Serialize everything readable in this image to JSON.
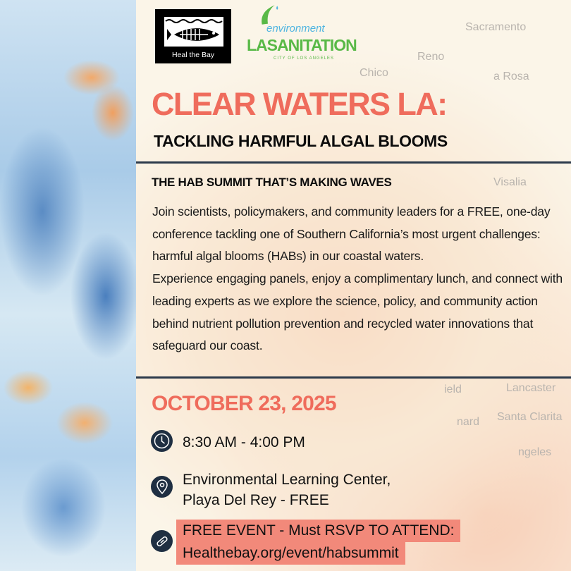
{
  "logos": {
    "heal_the_bay": "Heal the Bay",
    "lasan_environment": "environment",
    "lasan_name": "LASANITATION",
    "lasan_city": "CITY OF LOS ANGELES"
  },
  "map_labels": [
    "Reno",
    "Chico",
    "Sacramento",
    "a Rosa",
    "Visalia",
    "ield",
    "Lancaster",
    "Santa Clarita",
    "nard",
    "ngeles"
  ],
  "title": "CLEAR WATERS LA:",
  "subtitle": "TACKLING HARMFUL ALGAL BLOOMS",
  "section_heading": "THE HAB SUMMIT THAT’S MAKING WAVES",
  "body": {
    "p1": "Join scientists, policymakers, and community leaders for a FREE, one-day conference tackling one of Southern California’s most urgent challenges: harmful algal blooms (HABs) in our coastal waters.",
    "p2": "Experience engaging panels, enjoy a complimentary lunch, and connect with leading experts as we explore the science, policy, and community action behind nutrient pollution prevention and recycled water innovations that safeguard our coast."
  },
  "date": "OCTOBER 23, 2025",
  "time": "8:30 AM - 4:00 PM",
  "location": {
    "line1": "Environmental Learning Center,",
    "line2": "Playa Del Rey - FREE"
  },
  "rsvp": {
    "line1": "FREE EVENT - Must RSVP TO ATTEND:",
    "line2": "Healthebay.org/event/habsummit"
  },
  "colors": {
    "accent": "#ef6c5c",
    "navy": "#1f2f42",
    "highlight": "#f2897a"
  }
}
